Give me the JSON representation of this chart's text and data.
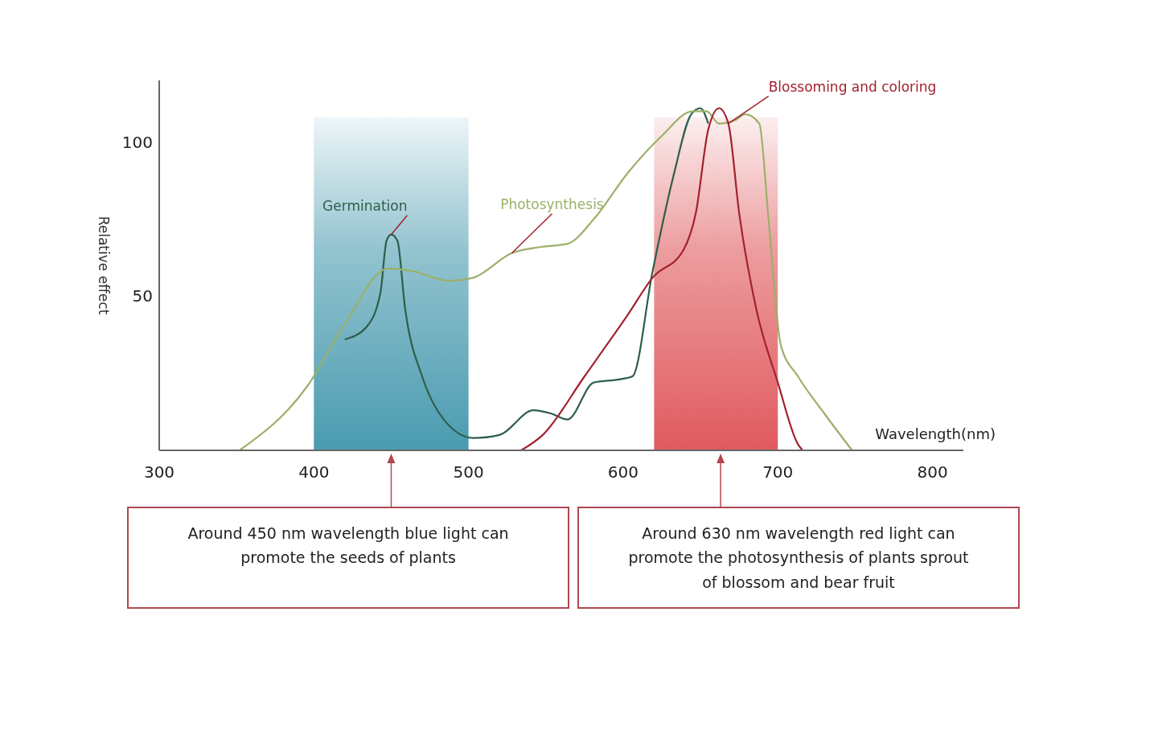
{
  "chart_data": {
    "type": "line",
    "xlabel": "Wavelength(nm)",
    "ylabel": "Relative effect",
    "xlim": [
      300,
      820
    ],
    "ylim": [
      0,
      120
    ],
    "xticks": [
      300,
      400,
      500,
      600,
      700,
      800
    ],
    "yticks": [
      50,
      100
    ],
    "grid": false,
    "marker": "none",
    "line_style": "solid",
    "series": [
      {
        "name": "Germination",
        "color": "#2f5e4a",
        "x": [
          420,
          434,
          443,
          447,
          450,
          454,
          459,
          470,
          484,
          503,
          520,
          542,
          553,
          564,
          581,
          597,
          606,
          619,
          633,
          644,
          650,
          655
        ],
        "values": [
          36,
          40,
          51,
          68,
          70,
          68,
          46,
          24,
          10,
          4,
          5,
          13,
          12,
          10,
          22,
          23,
          24,
          58,
          90,
          109,
          111,
          106
        ]
      },
      {
        "name": "Photosynthesis",
        "color": "#9bb068",
        "x": [
          352,
          396,
          420,
          448,
          465,
          487,
          503,
          528,
          547,
          564,
          581,
          603,
          625,
          645,
          654,
          662,
          672,
          679,
          688,
          694,
          702,
          713,
          730,
          748
        ],
        "values": [
          0,
          21,
          41,
          59,
          58,
          55,
          56,
          64,
          66,
          67,
          75,
          90,
          102,
          110,
          110,
          106,
          107,
          109,
          106,
          75,
          34,
          24,
          12,
          0
        ]
      },
      {
        "name": "Blossoming and coloring",
        "color": "#a3222e",
        "x": [
          534,
          548,
          575,
          603,
          619,
          639,
          647,
          655,
          662,
          668,
          675,
          686,
          700,
          713,
          716
        ],
        "values": [
          0,
          5,
          24,
          44,
          56,
          65,
          77,
          104,
          111,
          106,
          77,
          46,
          22,
          2,
          0
        ]
      }
    ],
    "bands": [
      {
        "axis": "x",
        "from": 400,
        "to": 500,
        "color": "#4a9bb0"
      },
      {
        "axis": "x",
        "from": 620,
        "to": 700,
        "color": "#e05a5e"
      }
    ],
    "annotations": [
      {
        "text": "Around 450 nm wavelength blue light can promote the seeds of plants",
        "x": 450,
        "y": 0
      },
      {
        "text": "Around 630 nm wavelength red light can promote the photosynthesis of plants sprout of blossom and bear fruit",
        "x": 663,
        "y": 0
      }
    ]
  }
}
